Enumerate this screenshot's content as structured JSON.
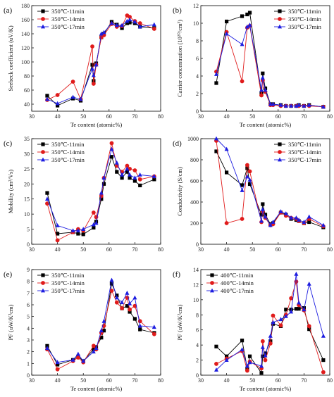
{
  "chart_data": [
    {
      "panel": "(a)",
      "type": "line",
      "xlabel": "Te content (atomic%)",
      "ylabel": "Seebeck coefficient (uV/K)",
      "xlim": [
        30,
        80
      ],
      "ylim": [
        30,
        180
      ],
      "xticks": [
        30,
        40,
        50,
        60,
        70,
        80
      ],
      "yticks": [
        40,
        60,
        80,
        100,
        120,
        140,
        160,
        180
      ],
      "legend_position": "top-left",
      "series": [
        {
          "name": "350℃-11min",
          "color": "#000000",
          "marker": "square",
          "x": [
            36,
            40,
            46,
            49,
            53.5,
            54,
            55,
            57,
            58,
            61,
            63,
            65,
            67,
            68,
            70,
            72,
            77.5
          ],
          "y": [
            52,
            38,
            48,
            45,
            96,
            73,
            98,
            135,
            140,
            157,
            153,
            148,
            155,
            156,
            155,
            150,
            148
          ]
        },
        {
          "name": "350℃-14min",
          "color": "#e01b1b",
          "marker": "circle",
          "x": [
            36,
            40,
            46,
            49,
            53.5,
            54,
            55,
            57,
            58,
            61,
            63,
            65,
            67,
            68,
            70,
            72,
            77.5
          ],
          "y": [
            46,
            53,
            72,
            47,
            122,
            69,
            96,
            135,
            138,
            154,
            150,
            151,
            166,
            164,
            158,
            155,
            147
          ]
        },
        {
          "name": "350℃-17min",
          "color": "#1c1ce0",
          "marker": "triangle",
          "x": [
            36,
            40,
            46,
            49,
            53.5,
            54,
            55,
            57,
            58,
            61,
            63,
            65,
            67,
            68,
            70,
            72,
            77.5
          ],
          "y": [
            47,
            41,
            50,
            47,
            90,
            81,
            96,
            140,
            142,
            155,
            152,
            152,
            158,
            160,
            157,
            150,
            153
          ]
        }
      ]
    },
    {
      "panel": "(b)",
      "type": "line",
      "xlabel": "Te content (atomic%)",
      "ylabel": "Carrier concentration (10²⁰/cm³)",
      "xlim": [
        30,
        80
      ],
      "ylim": [
        0,
        12
      ],
      "xticks": [
        30,
        40,
        50,
        60,
        70,
        80
      ],
      "yticks": [
        0,
        2,
        4,
        6,
        8,
        10,
        12
      ],
      "legend_position": "top-right",
      "series": [
        {
          "name": "350℃-11min",
          "color": "#000000",
          "marker": "square",
          "x": [
            36,
            40,
            46,
            48,
            49,
            53.5,
            54,
            55,
            57,
            58,
            61,
            63,
            65,
            67,
            68,
            70,
            72,
            77.5
          ],
          "y": [
            3.2,
            10.2,
            10.8,
            11.0,
            11.2,
            2.0,
            4.3,
            2.6,
            0.8,
            0.8,
            0.7,
            0.6,
            0.6,
            0.6,
            0.7,
            0.6,
            0.7,
            0.5
          ]
        },
        {
          "name": "350℃-14min",
          "color": "#e01b1b",
          "marker": "circle",
          "x": [
            36,
            40,
            46,
            48,
            49,
            53.5,
            54,
            55,
            57,
            58,
            61,
            63,
            65,
            67,
            68,
            70,
            72,
            77.5
          ],
          "y": [
            4.5,
            9.0,
            3.4,
            9.5,
            9.7,
            1.8,
            3.5,
            2.2,
            0.7,
            0.7,
            0.6,
            0.6,
            0.6,
            0.6,
            0.6,
            0.6,
            0.6,
            0.5
          ]
        },
        {
          "name": "350℃-17min",
          "color": "#1c1ce0",
          "marker": "triangle",
          "x": [
            36,
            40,
            46,
            48,
            49,
            53.5,
            54,
            55,
            57,
            58,
            61,
            63,
            65,
            67,
            68,
            70,
            72,
            77.5
          ],
          "y": [
            4.2,
            8.8,
            7.6,
            9.6,
            9.8,
            2.4,
            3.8,
            2.4,
            0.8,
            0.8,
            0.7,
            0.6,
            0.6,
            0.6,
            0.7,
            0.6,
            0.7,
            0.5
          ]
        }
      ]
    },
    {
      "panel": "(c)",
      "type": "line",
      "xlabel": "",
      "ylabel": "Mobility (cm²/Vs)",
      "xlim": [
        30,
        80
      ],
      "ylim": [
        0,
        35
      ],
      "xticks": [
        30,
        40,
        50,
        60,
        70,
        80
      ],
      "yticks": [
        0,
        5,
        10,
        15,
        20,
        25,
        30,
        35
      ],
      "legend_position": "top-left",
      "series": [
        {
          "name": "350℃-11min",
          "color": "#000000",
          "marker": "square",
          "x": [
            36,
            40,
            46,
            48,
            50,
            54,
            55,
            57,
            58,
            61,
            63,
            65,
            67,
            68,
            70,
            72,
            77.5
          ],
          "y": [
            17,
            3.5,
            4,
            3.5,
            3.3,
            5.5,
            7.5,
            15,
            20,
            29,
            24,
            22,
            24,
            22,
            21,
            19.5,
            21.5
          ]
        },
        {
          "name": "350℃-14min",
          "color": "#e01b1b",
          "marker": "circle",
          "x": [
            36,
            40,
            46,
            48,
            50,
            54,
            55,
            57,
            58,
            61,
            63,
            65,
            67,
            68,
            70,
            72,
            77.5
          ],
          "y": [
            13.5,
            1.3,
            4,
            5,
            4.5,
            10.5,
            9,
            16,
            22,
            33.5,
            26,
            24,
            26,
            25,
            24.5,
            21.5,
            22.5
          ]
        },
        {
          "name": "350℃-17min",
          "color": "#1c1ce0",
          "marker": "triangle",
          "x": [
            36,
            40,
            46,
            48,
            50,
            54,
            55,
            57,
            58,
            61,
            63,
            65,
            67,
            68,
            70,
            72,
            77.5
          ],
          "y": [
            15,
            6.2,
            4.5,
            4.5,
            5,
            6.5,
            7,
            17,
            22,
            31.5,
            27,
            23,
            25,
            23,
            22,
            23,
            22.5
          ]
        }
      ]
    },
    {
      "panel": "(d)",
      "type": "line",
      "xlabel": "",
      "ylabel": "Conductivity (S/cm)",
      "xlim": [
        30,
        80
      ],
      "ylim": [
        0,
        1000
      ],
      "xticks": [
        30,
        40,
        50,
        60,
        70,
        80
      ],
      "yticks": [
        0,
        200,
        400,
        600,
        800,
        1000
      ],
      "legend_position": "top-right",
      "series": [
        {
          "name": "350℃-11min",
          "color": "#000000",
          "marker": "square",
          "x": [
            36,
            40,
            46,
            48,
            49,
            53.5,
            54,
            55,
            57,
            58,
            61,
            63,
            65,
            67,
            68,
            70,
            72,
            77.5
          ],
          "y": [
            880,
            680,
            560,
            720,
            570,
            280,
            380,
            280,
            190,
            200,
            300,
            280,
            240,
            230,
            220,
            200,
            210,
            160
          ]
        },
        {
          "name": "350℃-14min",
          "color": "#e01b1b",
          "marker": "circle",
          "x": [
            36,
            40,
            46,
            48,
            49,
            53.5,
            54,
            55,
            57,
            58,
            61,
            63,
            65,
            67,
            68,
            70,
            72,
            77.5
          ],
          "y": [
            980,
            200,
            240,
            750,
            690,
            210,
            310,
            250,
            180,
            190,
            300,
            270,
            250,
            240,
            220,
            200,
            240,
            170
          ]
        },
        {
          "name": "350℃-17min",
          "color": "#1c1ce0",
          "marker": "triangle",
          "x": [
            36,
            40,
            46,
            48,
            49,
            53.5,
            54,
            55,
            57,
            58,
            61,
            63,
            65,
            67,
            68,
            70,
            72,
            77.5
          ],
          "y": [
            1000,
            900,
            510,
            640,
            610,
            220,
            330,
            260,
            180,
            210,
            310,
            290,
            250,
            250,
            230,
            210,
            260,
            180
          ]
        }
      ]
    },
    {
      "panel": "(e)",
      "type": "line",
      "xlabel": "Te content (atomic%)",
      "ylabel": "PF (uW/K²cm)",
      "xlim": [
        30,
        80
      ],
      "ylim": [
        0,
        9
      ],
      "xticks": [
        30,
        40,
        50,
        60,
        70,
        80
      ],
      "yticks": [
        0,
        1,
        2,
        3,
        4,
        5,
        6,
        7,
        8,
        9
      ],
      "legend_position": "top-left",
      "series": [
        {
          "name": "350℃-11min",
          "color": "#000000",
          "marker": "square",
          "x": [
            36,
            40,
            46,
            48,
            50,
            54,
            55,
            57,
            58,
            61,
            63,
            65,
            67,
            68,
            70,
            72,
            77.5
          ],
          "y": [
            2.5,
            0.9,
            1.3,
            1.6,
            1.2,
            2.2,
            2.4,
            3.2,
            3.8,
            7.8,
            6.8,
            5.7,
            5.9,
            5.4,
            4.8,
            3.9,
            3.6
          ]
        },
        {
          "name": "350℃-14min",
          "color": "#e01b1b",
          "marker": "circle",
          "x": [
            36,
            40,
            46,
            48,
            50,
            54,
            55,
            57,
            58,
            61,
            63,
            65,
            67,
            68,
            70,
            72,
            77.5
          ],
          "y": [
            2.2,
            0.5,
            1.2,
            1.5,
            1.1,
            2.5,
            2.2,
            3.6,
            4.2,
            7.2,
            6.2,
            5.7,
            6.6,
            5.6,
            5.9,
            4.6,
            3.5
          ]
        },
        {
          "name": "350℃-17min",
          "color": "#1c1ce0",
          "marker": "triangle",
          "x": [
            36,
            40,
            46,
            48,
            50,
            54,
            55,
            57,
            58,
            61,
            63,
            65,
            67,
            68,
            70,
            72,
            77.5
          ],
          "y": [
            2.3,
            1.1,
            1.3,
            1.8,
            1.2,
            2.0,
            2.3,
            3.8,
            4.6,
            8.1,
            6.6,
            6.2,
            7.0,
            6.1,
            6.6,
            4.2,
            4.1
          ]
        }
      ]
    },
    {
      "panel": "(f)",
      "type": "line",
      "xlabel": "Te content (atomic%)",
      "ylabel": "PF (uW/K²cm)",
      "xlim": [
        30,
        80
      ],
      "ylim": [
        0,
        14
      ],
      "xticks": [
        30,
        40,
        50,
        60,
        70,
        80
      ],
      "yticks": [
        0,
        2,
        4,
        6,
        8,
        10,
        12,
        14
      ],
      "legend_position": "top-left",
      "series": [
        {
          "name": "400℃-11min",
          "color": "#000000",
          "marker": "square",
          "x": [
            36,
            40,
            46,
            48,
            49,
            53.5,
            54,
            55,
            57,
            58,
            61,
            63,
            65,
            67,
            68,
            70,
            72,
            77.5
          ],
          "y": [
            3.8,
            2.5,
            4.6,
            0.9,
            2.5,
            0.3,
            2.5,
            2.9,
            4.5,
            6.8,
            6.5,
            8.7,
            8.7,
            8.8,
            8.8,
            8.9,
            6.1,
            2.0
          ]
        },
        {
          "name": "400℃-14min",
          "color": "#e01b1b",
          "marker": "circle",
          "x": [
            36,
            40,
            46,
            48,
            49,
            53.5,
            54,
            55,
            57,
            58,
            61,
            63,
            65,
            67,
            68,
            70,
            72,
            77.5
          ],
          "y": [
            1.5,
            2.2,
            3.2,
            0.6,
            1.8,
            0.9,
            4.5,
            2.0,
            4.2,
            7.9,
            6.6,
            8.0,
            10.2,
            12.4,
            9.3,
            8.6,
            6.5,
            0.4
          ]
        },
        {
          "name": "400℃-17min",
          "color": "#1c1ce0",
          "marker": "triangle",
          "x": [
            36,
            40,
            46,
            48,
            49,
            53.5,
            54,
            55,
            57,
            58,
            61,
            63,
            65,
            67,
            68,
            70,
            72,
            77.5
          ],
          "y": [
            0.7,
            2.0,
            3.4,
            1.2,
            1.7,
            1.2,
            3.7,
            2.6,
            5.2,
            7.0,
            7.4,
            7.8,
            8.4,
            13.4,
            9.6,
            8.7,
            12.1,
            5.2
          ]
        }
      ]
    }
  ]
}
